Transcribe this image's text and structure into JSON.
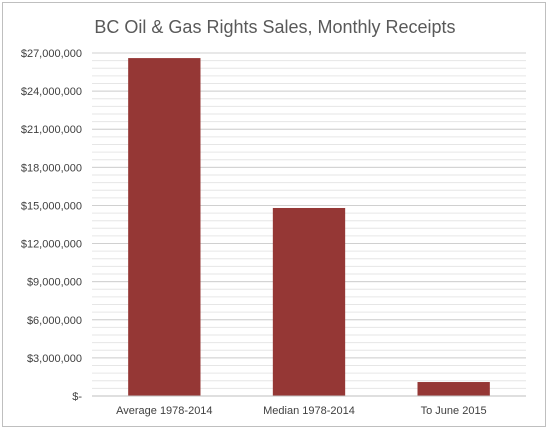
{
  "chart_data": {
    "type": "bar",
    "title": "BC Oil & Gas Rights Sales, Monthly Receipts",
    "xlabel": "",
    "ylabel": "",
    "categories": [
      "Average 1978-2014",
      "Median 1978-2014",
      "To June 2015"
    ],
    "values": [
      26600000,
      14800000,
      1100000
    ],
    "ylim": [
      0,
      27000000
    ],
    "y_ticks": [
      0,
      3000000,
      6000000,
      9000000,
      12000000,
      15000000,
      18000000,
      21000000,
      24000000,
      27000000
    ],
    "y_tick_labels": [
      "$-",
      "$3,000,000",
      "$6,000,000",
      "$9,000,000",
      "$12,000,000",
      "$15,000,000",
      "$18,000,000",
      "$21,000,000",
      "$24,000,000",
      "$27,000,000"
    ],
    "bar_color": "#953735",
    "grid": true,
    "legend": "none"
  }
}
